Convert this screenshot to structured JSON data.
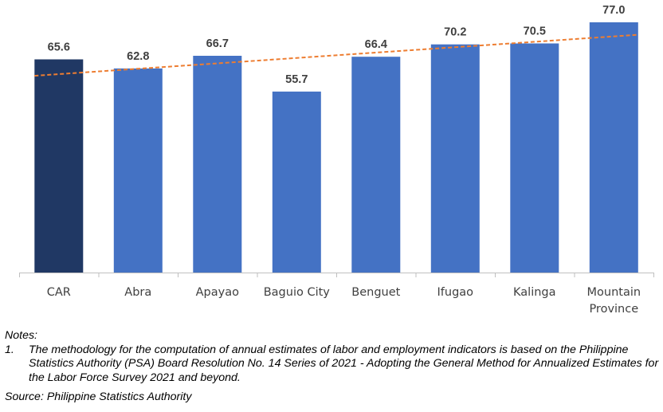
{
  "chart_data": {
    "type": "bar",
    "categories": [
      "CAR",
      "Abra",
      "Apayao",
      "Baguio City",
      "Benguet",
      "Ifugao",
      "Kalinga",
      "Mountain Province"
    ],
    "category_lines": [
      [
        "CAR"
      ],
      [
        "Abra"
      ],
      [
        "Apayao"
      ],
      [
        "Baguio City"
      ],
      [
        "Benguet"
      ],
      [
        "Ifugao"
      ],
      [
        "Kalinga"
      ],
      [
        "Mountain",
        "Province"
      ]
    ],
    "values": [
      65.6,
      62.8,
      66.7,
      55.7,
      66.4,
      70.2,
      70.5,
      77.0
    ],
    "data_labels": [
      "65.6",
      "62.8",
      "66.7",
      "55.7",
      "66.4",
      "70.2",
      "70.5",
      "77.0"
    ],
    "ylim": [
      0,
      77.0
    ],
    "title": "",
    "xlabel": "",
    "ylabel": "",
    "grid": false,
    "legend": "none",
    "highlight_index": 0,
    "trendline": {
      "type": "linear",
      "style": "dashed"
    },
    "colors": {
      "bar": "#4472C4",
      "highlight_bar": "#203864",
      "trendline": "#ED7D31",
      "axis": "#BFBFBF",
      "label": "#404040",
      "data_label": "#3F3F3F"
    }
  },
  "notes": {
    "heading": "Notes:",
    "items": [
      {
        "number": "1.",
        "text": "The methodology for the computation of annual estimates of labor and employment indicators is based on the Philippine Statistics Authority (PSA) Board Resolution No. 14 Series of 2021 - Adopting the General Method for Annualized Estimates for the Labor Force Survey 2021 and beyond."
      }
    ],
    "source": "Source: Philippine Statistics Authority"
  }
}
